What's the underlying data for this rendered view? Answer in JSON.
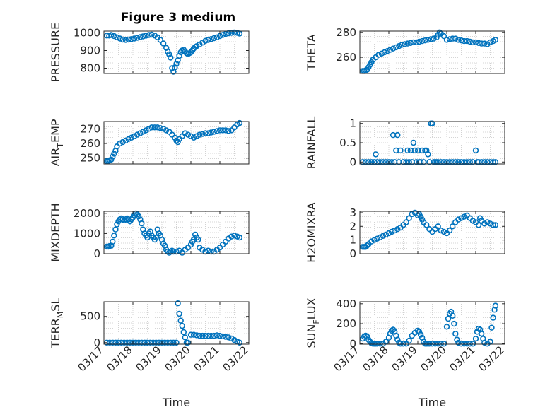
{
  "figure": {
    "title": "Figure 3 medium",
    "marker_color": "#0072BD"
  },
  "chart_data": [
    {
      "type": "scatter",
      "ylabel_main": "PRESSURE",
      "ylabel_sub": "",
      "ylabel_tail": "",
      "ylim": [
        770,
        1010
      ],
      "yticks": [
        1000,
        900,
        800
      ],
      "xlim": [
        0,
        5
      ],
      "xticks": [],
      "xlabel": "",
      "grid": true,
      "x": [
        0.1,
        0.18,
        0.25,
        0.35,
        0.45,
        0.55,
        0.65,
        0.75,
        0.85,
        0.95,
        1.05,
        1.15,
        1.25,
        1.35,
        1.45,
        1.55,
        1.65,
        1.75,
        1.85,
        1.95,
        2.05,
        2.15,
        2.2,
        2.25,
        2.3,
        2.35,
        2.4,
        2.45,
        2.5,
        2.55,
        2.6,
        2.65,
        2.7,
        2.75,
        2.8,
        2.85,
        2.9,
        2.95,
        3.0,
        3.05,
        3.1,
        3.15,
        3.2,
        3.3,
        3.4,
        3.5,
        3.6,
        3.7,
        3.8,
        3.9,
        4.0,
        4.1,
        4.2,
        4.3,
        4.4,
        4.5,
        4.6,
        4.68
      ],
      "y": [
        985,
        985,
        988,
        982,
        975,
        968,
        962,
        960,
        962,
        965,
        968,
        972,
        976,
        980,
        984,
        988,
        990,
        985,
        975,
        960,
        940,
        915,
        895,
        878,
        860,
        800,
        780,
        805,
        825,
        845,
        870,
        890,
        900,
        905,
        895,
        885,
        880,
        885,
        890,
        900,
        912,
        920,
        925,
        935,
        945,
        955,
        960,
        965,
        970,
        975,
        982,
        988,
        994,
        998,
        1000,
        1002,
        1000,
        996
      ]
    },
    {
      "type": "scatter",
      "ylabel_main": "THETA",
      "ylabel_sub": "",
      "ylabel_tail": "",
      "ylim": [
        247,
        281
      ],
      "yticks": [
        280,
        260
      ],
      "xlim": [
        0,
        5
      ],
      "xticks": [],
      "xlabel": "",
      "grid": true,
      "x": [
        0.1,
        0.15,
        0.2,
        0.25,
        0.3,
        0.35,
        0.4,
        0.45,
        0.55,
        0.65,
        0.75,
        0.85,
        0.95,
        1.05,
        1.15,
        1.25,
        1.35,
        1.45,
        1.55,
        1.65,
        1.75,
        1.85,
        1.95,
        2.05,
        2.15,
        2.25,
        2.35,
        2.45,
        2.55,
        2.65,
        2.7,
        2.75,
        2.8,
        2.9,
        3.0,
        3.1,
        3.2,
        3.3,
        3.4,
        3.5,
        3.6,
        3.7,
        3.8,
        3.9,
        4.0,
        4.1,
        4.2,
        4.3,
        4.4,
        4.5,
        4.6,
        4.68
      ],
      "y": [
        249,
        249,
        249.5,
        250,
        252,
        254,
        256,
        258,
        260,
        262,
        263,
        264,
        265,
        266,
        267,
        268,
        269,
        270,
        270.5,
        271,
        271.5,
        272,
        272,
        272.5,
        273,
        273.5,
        274,
        274.5,
        275,
        276,
        278,
        280,
        279,
        277,
        274,
        274.5,
        275,
        275,
        274,
        273.5,
        273,
        273,
        272.5,
        272,
        272,
        271.5,
        271,
        271,
        270.5,
        272,
        273,
        274
      ]
    },
    {
      "type": "scatter",
      "ylabel_main": "AIR",
      "ylabel_sub": "T",
      "ylabel_tail": "EMP",
      "ylim": [
        246,
        275
      ],
      "yticks": [
        270,
        260,
        250
      ],
      "xlim": [
        0,
        5
      ],
      "xticks": [],
      "xlabel": "",
      "grid": true,
      "x": [
        0.1,
        0.15,
        0.2,
        0.25,
        0.3,
        0.35,
        0.4,
        0.45,
        0.55,
        0.65,
        0.75,
        0.85,
        0.95,
        1.05,
        1.15,
        1.25,
        1.35,
        1.45,
        1.55,
        1.65,
        1.75,
        1.85,
        1.95,
        2.05,
        2.15,
        2.25,
        2.35,
        2.45,
        2.5,
        2.55,
        2.6,
        2.7,
        2.8,
        2.9,
        3.0,
        3.1,
        3.2,
        3.3,
        3.4,
        3.5,
        3.6,
        3.7,
        3.8,
        3.9,
        4.0,
        4.1,
        4.2,
        4.3,
        4.4,
        4.5,
        4.6,
        4.68
      ],
      "y": [
        248,
        248,
        248.5,
        249,
        251,
        253,
        255,
        258,
        260,
        261,
        262,
        263,
        264,
        265,
        266,
        267,
        268,
        269,
        270,
        271,
        271,
        271,
        270.5,
        270,
        269,
        268,
        266,
        264,
        262,
        261,
        263,
        265,
        267,
        266,
        265,
        264,
        265,
        266,
        266.5,
        267,
        267,
        267.5,
        268,
        268.5,
        269,
        269,
        269,
        268.5,
        269,
        271,
        273,
        274
      ]
    },
    {
      "type": "scatter",
      "ylabel_main": "RAINFALL",
      "ylabel_sub": "",
      "ylabel_tail": "",
      "ylim": [
        -0.05,
        1.05
      ],
      "yticks": [
        1,
        0.5,
        0
      ],
      "xlim": [
        0,
        5
      ],
      "xticks": [],
      "xlabel": "",
      "grid": true,
      "x": [
        0.1,
        0.2,
        0.3,
        0.4,
        0.5,
        0.55,
        0.6,
        0.7,
        0.8,
        0.9,
        1.0,
        1.1,
        1.15,
        1.2,
        1.25,
        1.3,
        1.35,
        1.4,
        1.5,
        1.6,
        1.65,
        1.7,
        1.75,
        1.8,
        1.85,
        1.9,
        1.95,
        2.0,
        2.05,
        2.1,
        2.15,
        2.2,
        2.25,
        2.3,
        2.35,
        2.4,
        2.45,
        2.5,
        2.55,
        2.6,
        2.65,
        2.7,
        2.8,
        2.9,
        3.0,
        3.1,
        3.2,
        3.3,
        3.4,
        3.5,
        3.6,
        3.7,
        3.8,
        3.9,
        4.0,
        4.05,
        4.1,
        4.2,
        4.3,
        4.4,
        4.5,
        4.6,
        4.68
      ],
      "y": [
        0,
        0,
        0,
        0,
        0,
        0.2,
        0,
        0,
        0,
        0,
        0,
        0,
        0.7,
        0,
        0.3,
        0.7,
        0,
        0.3,
        0,
        0,
        0.3,
        0,
        0.3,
        0,
        0.5,
        0.3,
        0,
        0.3,
        0,
        0,
        0.3,
        0,
        0.3,
        0.3,
        0.2,
        0,
        1,
        1,
        0,
        0,
        0,
        0,
        0,
        0,
        0,
        0,
        0,
        0,
        0,
        0,
        0,
        0,
        0,
        0,
        0.3,
        0,
        0,
        0,
        0,
        0,
        0,
        0,
        0
      ]
    },
    {
      "type": "scatter",
      "ylabel_main": "MIXDEPTH",
      "ylabel_sub": "",
      "ylabel_tail": "",
      "ylim": [
        0,
        2100
      ],
      "yticks": [
        2000,
        1000,
        0
      ],
      "xlim": [
        0,
        5
      ],
      "xticks": [],
      "xlabel": "",
      "grid": true,
      "x": [
        0.1,
        0.15,
        0.2,
        0.25,
        0.3,
        0.35,
        0.4,
        0.45,
        0.5,
        0.55,
        0.6,
        0.65,
        0.7,
        0.75,
        0.8,
        0.85,
        0.9,
        0.95,
        1.0,
        1.05,
        1.1,
        1.15,
        1.2,
        1.25,
        1.3,
        1.35,
        1.4,
        1.45,
        1.5,
        1.55,
        1.6,
        1.65,
        1.7,
        1.75,
        1.8,
        1.85,
        1.9,
        1.95,
        2.0,
        2.05,
        2.1,
        2.15,
        2.2,
        2.25,
        2.3,
        2.35,
        2.4,
        2.5,
        2.6,
        2.7,
        2.8,
        2.9,
        3.0,
        3.05,
        3.1,
        3.15,
        3.2,
        3.25,
        3.3,
        3.4,
        3.5,
        3.6,
        3.7,
        3.8,
        3.9,
        4.0,
        4.1,
        4.2,
        4.3,
        4.4,
        4.5,
        4.6,
        4.68
      ],
      "y": [
        350,
        350,
        380,
        400,
        600,
        900,
        1200,
        1450,
        1600,
        1700,
        1750,
        1700,
        1650,
        1700,
        1750,
        1700,
        1600,
        1700,
        1800,
        1900,
        2000,
        1950,
        1850,
        1700,
        1500,
        1200,
        1000,
        900,
        800,
        1000,
        1100,
        900,
        800,
        700,
        800,
        1200,
        1000,
        900,
        700,
        500,
        400,
        200,
        100,
        50,
        100,
        150,
        100,
        100,
        150,
        50,
        200,
        300,
        450,
        600,
        700,
        950,
        800,
        700,
        300,
        200,
        100,
        150,
        100,
        100,
        200,
        300,
        450,
        600,
        750,
        850,
        900,
        850,
        800
      ]
    },
    {
      "type": "scatter",
      "ylabel_main": "H2OMIXRA",
      "ylabel_sub": "",
      "ylabel_tail": "",
      "ylim": [
        0,
        3.1
      ],
      "yticks": [
        3,
        2,
        1,
        0
      ],
      "xlim": [
        0,
        5
      ],
      "xticks": [],
      "xlabel": "",
      "grid": true,
      "x": [
        0.1,
        0.15,
        0.2,
        0.25,
        0.3,
        0.4,
        0.5,
        0.6,
        0.7,
        0.8,
        0.9,
        1.0,
        1.1,
        1.2,
        1.3,
        1.4,
        1.5,
        1.6,
        1.7,
        1.8,
        1.9,
        2.0,
        2.05,
        2.1,
        2.15,
        2.2,
        2.3,
        2.4,
        2.5,
        2.6,
        2.7,
        2.8,
        2.9,
        3.0,
        3.1,
        3.2,
        3.3,
        3.4,
        3.5,
        3.6,
        3.7,
        3.8,
        3.9,
        4.0,
        4.1,
        4.15,
        4.2,
        4.3,
        4.4,
        4.5,
        4.6,
        4.68
      ],
      "y": [
        0.5,
        0.5,
        0.5,
        0.6,
        0.7,
        0.9,
        1.0,
        1.1,
        1.2,
        1.3,
        1.4,
        1.5,
        1.6,
        1.7,
        1.8,
        1.9,
        2.1,
        2.3,
        2.6,
        2.9,
        3.0,
        2.8,
        2.9,
        2.7,
        2.5,
        2.3,
        2.1,
        1.8,
        1.6,
        1.8,
        2.0,
        1.7,
        1.6,
        1.5,
        1.7,
        2.0,
        2.3,
        2.5,
        2.6,
        2.7,
        2.8,
        2.6,
        2.4,
        2.3,
        2.1,
        2.6,
        2.4,
        2.2,
        2.3,
        2.2,
        2.1,
        2.1
      ]
    },
    {
      "type": "scatter",
      "ylabel_main": "TERR",
      "ylabel_sub": "M",
      "ylabel_tail": "SL",
      "ylim": [
        -30,
        780
      ],
      "yticks": [
        500,
        0
      ],
      "xlim": [
        0,
        5
      ],
      "xticks": [
        "03/17",
        "03/18",
        "03/19",
        "03/20",
        "03/21",
        "03/22"
      ],
      "xlabel": "Time",
      "grid": true,
      "x": [
        0.1,
        0.2,
        0.3,
        0.4,
        0.5,
        0.6,
        0.7,
        0.8,
        0.9,
        1.0,
        1.1,
        1.2,
        1.3,
        1.4,
        1.5,
        1.6,
        1.7,
        1.8,
        1.9,
        2.0,
        2.1,
        2.2,
        2.3,
        2.4,
        2.5,
        2.55,
        2.6,
        2.65,
        2.7,
        2.75,
        2.8,
        2.85,
        2.9,
        3.0,
        3.1,
        3.2,
        3.3,
        3.4,
        3.5,
        3.6,
        3.7,
        3.8,
        3.9,
        4.0,
        4.1,
        4.2,
        4.3,
        4.4,
        4.5,
        4.6,
        4.68
      ],
      "y": [
        0,
        0,
        0,
        0,
        0,
        0,
        0,
        0,
        0,
        0,
        0,
        0,
        0,
        0,
        0,
        0,
        0,
        0,
        0,
        0,
        0,
        0,
        0,
        0,
        0,
        750,
        550,
        420,
        320,
        200,
        100,
        0,
        0,
        150,
        150,
        140,
        130,
        130,
        130,
        130,
        130,
        130,
        140,
        130,
        120,
        110,
        100,
        80,
        50,
        20,
        0
      ]
    },
    {
      "type": "scatter",
      "ylabel_main": "SUN",
      "ylabel_sub": "F",
      "ylabel_tail": "LUX",
      "ylim": [
        -5,
        420
      ],
      "yticks": [
        400,
        200,
        0
      ],
      "xlim": [
        0,
        5
      ],
      "xticks": [
        "03/17",
        "03/18",
        "03/19",
        "03/20",
        "03/21",
        "03/22"
      ],
      "xlabel": "Time",
      "grid": true,
      "x": [
        0.1,
        0.15,
        0.2,
        0.25,
        0.3,
        0.35,
        0.4,
        0.45,
        0.5,
        0.55,
        0.6,
        0.7,
        0.8,
        0.9,
        1.0,
        1.05,
        1.1,
        1.15,
        1.2,
        1.25,
        1.3,
        1.35,
        1.4,
        1.5,
        1.6,
        1.7,
        1.8,
        1.9,
        2.0,
        2.05,
        2.1,
        2.15,
        2.2,
        2.25,
        2.3,
        2.35,
        2.4,
        2.5,
        2.6,
        2.7,
        2.8,
        2.9,
        3.0,
        3.05,
        3.1,
        3.15,
        3.2,
        3.25,
        3.3,
        3.35,
        3.4,
        3.5,
        3.6,
        3.7,
        3.8,
        3.9,
        4.0,
        4.05,
        4.1,
        4.15,
        4.2,
        4.25,
        4.3,
        4.4,
        4.5,
        4.55,
        4.6,
        4.65,
        4.68
      ],
      "y": [
        50,
        70,
        80,
        70,
        40,
        20,
        5,
        0,
        0,
        0,
        0,
        0,
        0,
        20,
        60,
        100,
        130,
        140,
        120,
        80,
        40,
        10,
        0,
        0,
        0,
        30,
        80,
        110,
        130,
        120,
        90,
        60,
        20,
        0,
        0,
        0,
        0,
        0,
        0,
        0,
        0,
        0,
        170,
        250,
        300,
        320,
        280,
        200,
        100,
        40,
        10,
        0,
        0,
        0,
        0,
        0,
        50,
        120,
        150,
        140,
        100,
        50,
        10,
        0,
        20,
        160,
        260,
        340,
        380
      ]
    }
  ]
}
